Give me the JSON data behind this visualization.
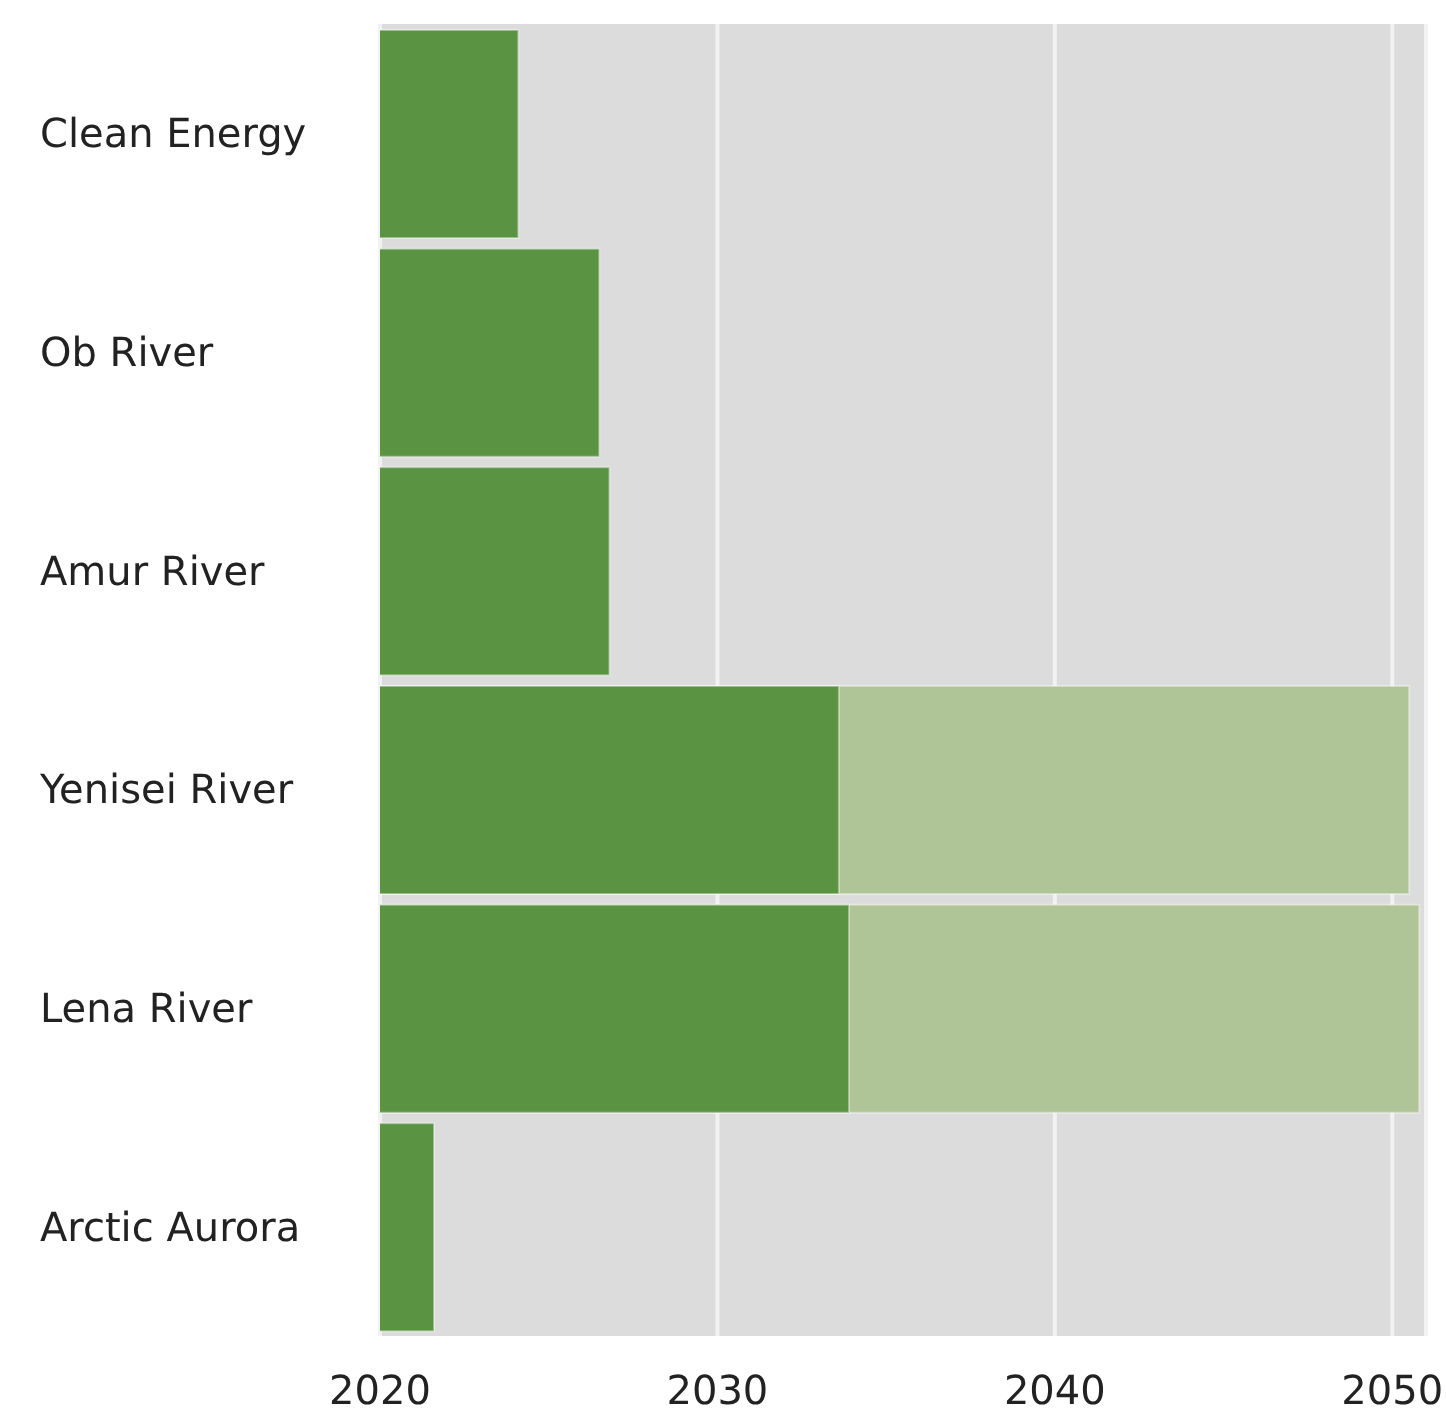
{
  "chart_data": {
    "type": "bar",
    "orientation": "horizontal",
    "categories": [
      "Clean Energy",
      "Ob River",
      "Amur River",
      "Yenisei River",
      "Lena River",
      "Arctic Aurora"
    ],
    "series": [
      {
        "color": "#b0c597",
        "values": [
          null,
          null,
          null,
          2050.5,
          2050.8,
          null
        ]
      },
      {
        "color": "#5a9342",
        "values": [
          2024.1,
          2026.5,
          2026.8,
          2033.6,
          2033.9,
          2021.6
        ]
      }
    ],
    "xlim": [
      2020,
      2051
    ],
    "xticks": [
      2020,
      2030,
      2040,
      2050
    ],
    "grid": "x",
    "legend": false
  }
}
